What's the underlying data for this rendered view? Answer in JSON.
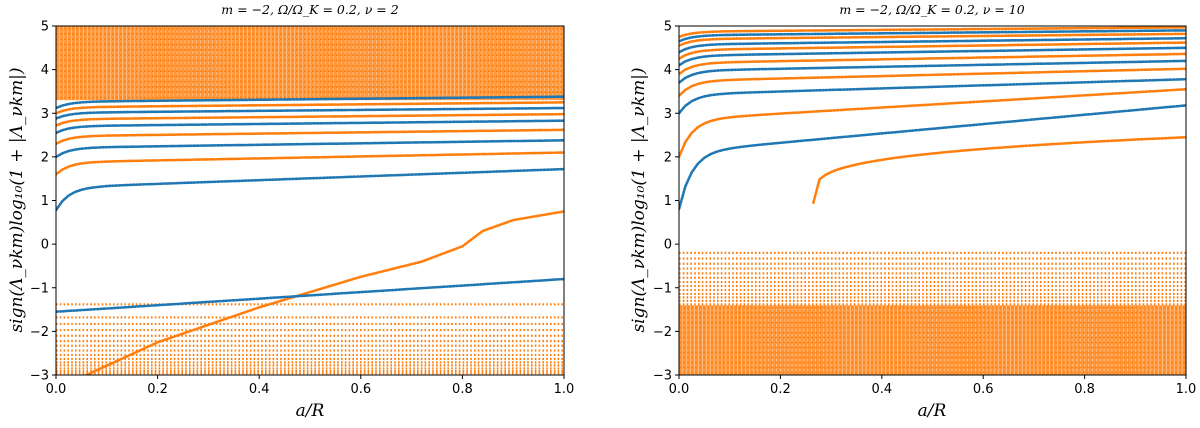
{
  "colors": {
    "blue": "#1f77b4",
    "orange": "#ff7f0e"
  },
  "chart_data": [
    {
      "type": "scatter",
      "title": "m = −2,  Ω/Ω_K = 0.2,  ν = 2",
      "xlabel": "a/R",
      "ylabel": "sign(Λ_νkm)log₁₀(1 + |Λ_νkm|)",
      "xlim": [
        0.0,
        1.0
      ],
      "ylim": [
        -3,
        5
      ],
      "xticks": [
        "0.0",
        "0.2",
        "0.4",
        "0.6",
        "0.8",
        "1.0"
      ],
      "yticks": [
        "−3",
        "−2",
        "−1",
        "0",
        "1",
        "2",
        "3",
        "4",
        "5"
      ],
      "series": [
        {
          "name": "blue branch 1",
          "color": "blue",
          "start": 0.78,
          "end": 1.72,
          "curve": "rise-log"
        },
        {
          "name": "orange branch 1",
          "color": "orange",
          "start": 1.6,
          "end": 2.1,
          "curve": "rise-log"
        },
        {
          "name": "blue branch 2",
          "color": "blue",
          "start": 2.0,
          "end": 2.38,
          "curve": "rise-log"
        },
        {
          "name": "orange branch 2",
          "color": "orange",
          "start": 2.3,
          "end": 2.62,
          "curve": "rise-log"
        },
        {
          "name": "blue branch 3",
          "color": "blue",
          "start": 2.55,
          "end": 2.83,
          "curve": "rise-log"
        },
        {
          "name": "orange branch 3",
          "color": "orange",
          "start": 2.72,
          "end": 2.98,
          "curve": "rise-log"
        },
        {
          "name": "blue branch 4",
          "color": "blue",
          "start": 2.88,
          "end": 3.12,
          "curve": "rise-log"
        },
        {
          "name": "orange branch 4",
          "color": "orange",
          "start": 3.0,
          "end": 3.25,
          "curve": "rise-log"
        },
        {
          "name": "blue branch 5",
          "color": "blue",
          "start": 3.12,
          "end": 3.38,
          "curve": "rise-log"
        },
        {
          "name": "orange crossing mode",
          "color": "orange",
          "curve": "crossing",
          "x": [
            0.06,
            0.2,
            0.4,
            0.6,
            0.72,
            0.8,
            0.84,
            0.9,
            1.0
          ],
          "y": [
            -3.0,
            -2.25,
            -1.45,
            -0.75,
            -0.4,
            -0.05,
            0.3,
            0.55,
            0.75
          ]
        },
        {
          "name": "blue negative mode",
          "color": "blue",
          "start": -1.55,
          "end": -0.8,
          "curve": "rise-linear"
        }
      ],
      "flat_negative_orange_levels": [
        -1.38,
        -1.68,
        -1.83,
        -1.97,
        -2.1,
        -2.22,
        -2.33,
        -2.44,
        -2.54,
        -2.63,
        -2.71,
        -2.78,
        -2.85,
        -2.91,
        -2.96
      ],
      "dense_orange_band": [
        3.3,
        5.0
      ]
    },
    {
      "type": "scatter",
      "title": "m = −2,  Ω/Ω_K = 0.2,  ν = 10",
      "xlabel": "a/R",
      "ylabel": "sign(Λ_νkm)log₁₀(1 + |Λ_νkm|)",
      "xlim": [
        0.0,
        1.0
      ],
      "ylim": [
        -3,
        5
      ],
      "xticks": [
        "0.0",
        "0.2",
        "0.4",
        "0.6",
        "0.8",
        "1.0"
      ],
      "yticks": [
        "−3",
        "−2",
        "−1",
        "0",
        "1",
        "2",
        "3",
        "4",
        "5"
      ],
      "series": [
        {
          "name": "orange isolated mode",
          "color": "orange",
          "curve": "isolated",
          "x0": 0.265,
          "start": 0.95,
          "end": 2.45
        },
        {
          "name": "blue branch 1",
          "color": "blue",
          "start": 0.8,
          "end": 3.18,
          "curve": "rise-log"
        },
        {
          "name": "orange branch 1",
          "color": "orange",
          "start": 2.0,
          "end": 3.55,
          "curve": "rise-log"
        },
        {
          "name": "blue branch 2",
          "color": "blue",
          "start": 3.0,
          "end": 3.78,
          "curve": "rise-log"
        },
        {
          "name": "orange branch 2",
          "color": "orange",
          "start": 3.4,
          "end": 4.02,
          "curve": "rise-log"
        },
        {
          "name": "blue branch 3",
          "color": "blue",
          "start": 3.7,
          "end": 4.2,
          "curve": "rise-log"
        },
        {
          "name": "orange branch 3",
          "color": "orange",
          "start": 3.9,
          "end": 4.36,
          "curve": "rise-log"
        },
        {
          "name": "blue branch 4",
          "color": "blue",
          "start": 4.1,
          "end": 4.5,
          "curve": "rise-log"
        },
        {
          "name": "orange branch 4",
          "color": "orange",
          "start": 4.25,
          "end": 4.62,
          "curve": "rise-log"
        },
        {
          "name": "blue branch 5",
          "color": "blue",
          "start": 4.4,
          "end": 4.72,
          "curve": "rise-log"
        },
        {
          "name": "orange branch 5",
          "color": "orange",
          "start": 4.55,
          "end": 4.82,
          "curve": "rise-log"
        },
        {
          "name": "blue branch 6",
          "color": "blue",
          "start": 4.65,
          "end": 4.9,
          "curve": "rise-log"
        },
        {
          "name": "orange branch 6",
          "color": "orange",
          "start": 4.75,
          "end": 4.97,
          "curve": "rise-log"
        }
      ],
      "flat_negative_orange_levels": [
        -0.2,
        -0.33,
        -0.45,
        -0.56,
        -0.67,
        -0.77,
        -0.87,
        -0.96,
        -1.05,
        -1.14,
        -1.22,
        -1.3,
        -1.38
      ],
      "dense_orange_band": [
        -3.0,
        -1.4
      ]
    }
  ]
}
